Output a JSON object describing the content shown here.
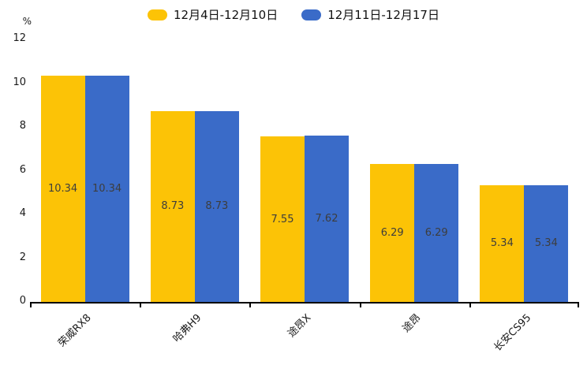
{
  "chart_data": {
    "type": "bar",
    "title": "",
    "categories": [
      "荣威RX8",
      "哈弗H9",
      "途昂X",
      "途昂",
      "长安CS95"
    ],
    "series": [
      {
        "name": "12月4日-12月10日",
        "color": "#FCC306",
        "values": [
          10.34,
          8.73,
          7.55,
          6.29,
          5.34
        ]
      },
      {
        "name": "12月11日-12月17日",
        "color": "#3A6BC8",
        "values": [
          10.34,
          8.73,
          7.62,
          6.29,
          5.34
        ]
      }
    ],
    "xlabel": "",
    "ylabel": "%",
    "ylim": [
      0,
      12
    ],
    "yticks": [
      0,
      2,
      4,
      6,
      8,
      10,
      12
    ],
    "grid": false,
    "legend_position": "top-center",
    "value_labels": "inside-center",
    "value_label_color": "#3d3d3d",
    "axis_color": "#000000",
    "tick_label_color": "#1a1a1a"
  }
}
